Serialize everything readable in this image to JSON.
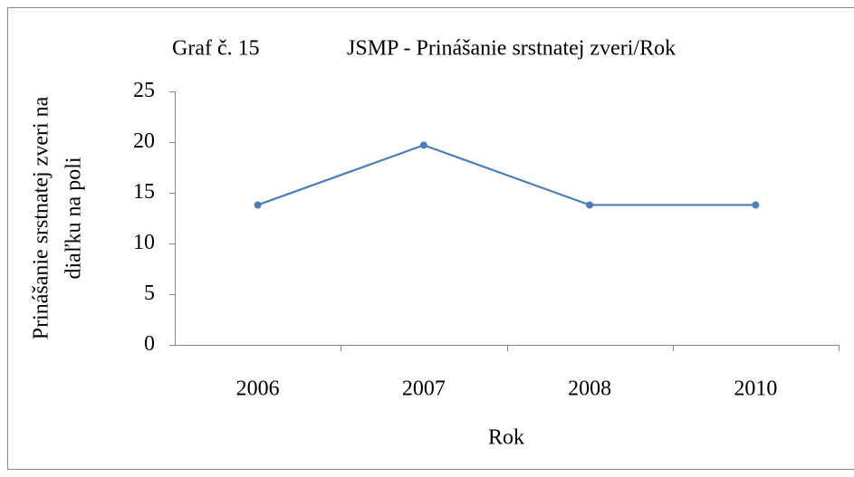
{
  "chart_data": {
    "type": "line",
    "figure_label": "Graf č. 15",
    "title": "JSMP - Prinášanie srstnatej zveri/Rok",
    "xlabel": "Rok",
    "ylabel": [
      "Prinášanie srstnatej zveri na",
      "diaľku na poli"
    ],
    "categories": [
      "2006",
      "2007",
      "2008",
      "2010"
    ],
    "series": [
      {
        "name": "JSMP",
        "color": "#4a7ebb",
        "values": [
          13.8,
          19.7,
          13.8,
          13.8
        ]
      }
    ],
    "ylim": [
      0,
      25
    ],
    "yticks": [
      0,
      5,
      10,
      15,
      20,
      25
    ],
    "grid": false
  }
}
